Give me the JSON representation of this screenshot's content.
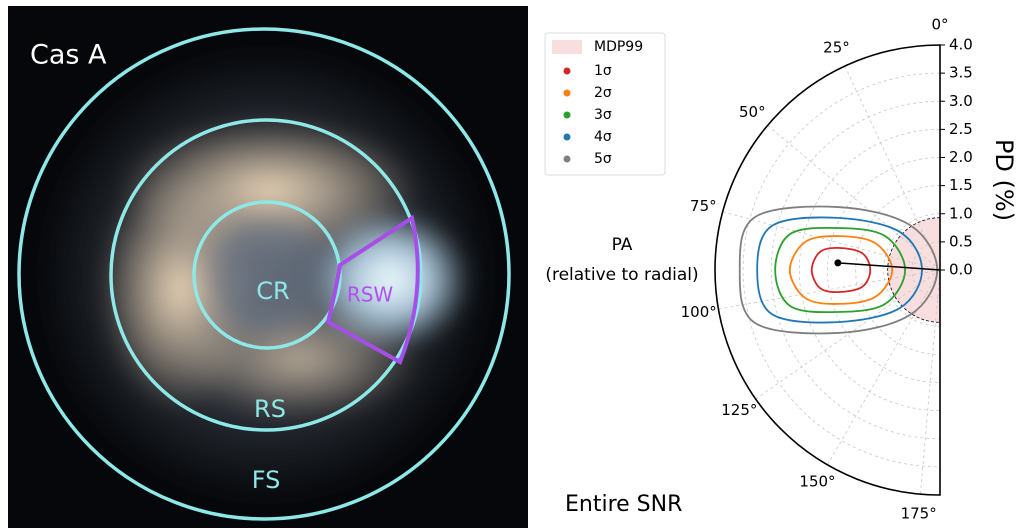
{
  "image": {
    "title": "Cas A",
    "regions": [
      "CR",
      "RSW",
      "RS",
      "FS"
    ]
  },
  "chart_data": {
    "type": "polar",
    "xlabel": "PA\n(relative to radial)",
    "ylabel": "PD (%)",
    "annotation": "Entire SNR",
    "ylim": [
      0,
      4
    ],
    "yticks": [
      {
        "value": 0,
        "label": "0.0"
      },
      {
        "value": 0.5,
        "label": "0.5"
      },
      {
        "value": 1,
        "label": "1.0"
      },
      {
        "value": 1.5,
        "label": "1.5"
      },
      {
        "value": 2,
        "label": "2.0"
      },
      {
        "value": 2.5,
        "label": "2.5"
      },
      {
        "value": 3,
        "label": "3.0"
      },
      {
        "value": 3.5,
        "label": "3.5"
      },
      {
        "value": 4,
        "label": "4.0"
      }
    ],
    "xlim": [
      0,
      180
    ],
    "xticks": [
      {
        "value": 0,
        "label": "0°"
      },
      {
        "value": 25,
        "label": "25°"
      },
      {
        "value": 50,
        "label": "50°"
      },
      {
        "value": 75,
        "label": "75°"
      },
      {
        "value": 100,
        "label": "100°"
      },
      {
        "value": 125,
        "label": "125°"
      },
      {
        "value": 150,
        "label": "150°"
      },
      {
        "value": 175,
        "label": "175°"
      }
    ],
    "grid": true,
    "legend": "upper left",
    "mdp99": {
      "name": "MDP99",
      "value": 0.93,
      "color": "#f8dede"
    },
    "center": {
      "pd": 1.82,
      "pa": 86
    },
    "series": [
      {
        "name": "1σ",
        "color": "#d62728",
        "pd": [
          2.28,
          2.16,
          1.86,
          1.42,
          1.24,
          1.42,
          1.86,
          2.16
        ],
        "pa": [
          90,
          81.5,
          77.8,
          77.7,
          90,
          102.3,
          102.2,
          98.5
        ]
      },
      {
        "name": "2σ",
        "color": "#ff7f0e",
        "pd": [
          2.67,
          2.45,
          1.91,
          1.25,
          0.85,
          1.25,
          1.91,
          2.45
        ],
        "pa": [
          90,
          78.3,
          71.6,
          67.4,
          90,
          112.6,
          108.4,
          101.7
        ]
      },
      {
        "name": "3σ",
        "color": "#2ca02c",
        "pd": [
          2.93,
          2.74,
          1.96,
          1.15,
          0.62,
          1.15,
          1.96,
          2.74
        ],
        "pa": [
          90,
          76.5,
          67.6,
          58.3,
          90,
          121.7,
          112.4,
          103.5
        ]
      },
      {
        "name": "4σ",
        "color": "#1f77b4",
        "pd": [
          3.25,
          3.09,
          2.04,
          0.98,
          0.32,
          0.98,
          2.04,
          3.09
        ],
        "pa": [
          90,
          75.3,
          63,
          46.5,
          90,
          133.5,
          117,
          104.7
        ]
      },
      {
        "name": "5σ",
        "color": "#7f7f7f",
        "pd": [
          3.56,
          3.42,
          2.13,
          0.96,
          0.05,
          0.96,
          2.13,
          3.42
        ],
        "pa": [
          90,
          74,
          58.3,
          33.7,
          90,
          146.3,
          121.7,
          106
        ]
      }
    ]
  }
}
